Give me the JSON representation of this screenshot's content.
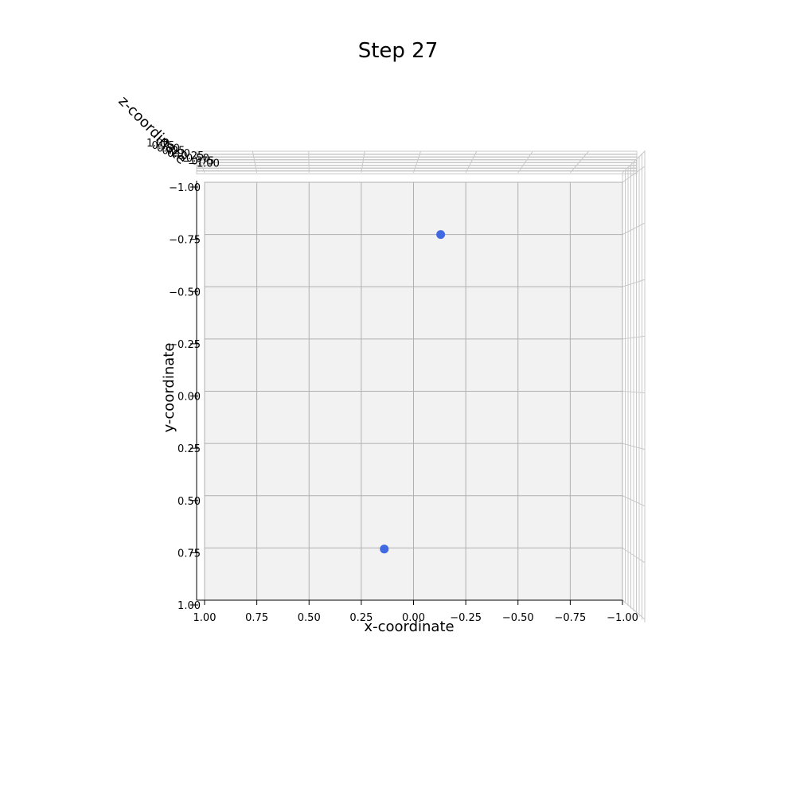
{
  "chart_data": {
    "type": "scatter",
    "title": "Step 27",
    "xlabel": "x-coordinate",
    "ylabel": "y-coordinate",
    "zlabel": "z-coordinate",
    "xlim": [
      1.0,
      -1.0
    ],
    "ylim": [
      -1.0,
      1.0
    ],
    "zlim": [
      -1.0,
      1.0
    ],
    "x_ticks": [
      "1.00",
      "0.75",
      "0.50",
      "0.25",
      "0.00",
      "−0.25",
      "−0.50",
      "−0.75",
      "−1.00"
    ],
    "x_tick_values": [
      1.0,
      0.75,
      0.5,
      0.25,
      0.0,
      -0.25,
      -0.5,
      -0.75,
      -1.0
    ],
    "y_ticks": [
      "−1.00",
      "−0.75",
      "−0.50",
      "−0.25",
      "0.00",
      "0.25",
      "0.50",
      "0.75",
      "1.00"
    ],
    "y_tick_values": [
      -1.0,
      -0.75,
      -0.5,
      -0.25,
      0.0,
      0.25,
      0.5,
      0.75,
      1.0
    ],
    "z_ticks": [
      "1.00",
      "0.75",
      "0.50",
      "0.25",
      "0.00",
      "−0.25",
      "−0.50",
      "−0.75",
      "−1.00"
    ],
    "grid": true,
    "marker_color": "#4169e1",
    "points": [
      {
        "x": -0.13,
        "y": -0.75
      },
      {
        "x": 0.14,
        "y": 0.755
      }
    ]
  }
}
